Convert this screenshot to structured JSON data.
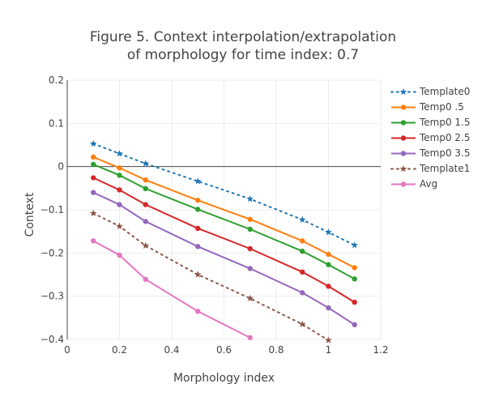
{
  "chart_data": {
    "type": "line",
    "title_line1": "Figure 5. Context interpolation/extrapolation",
    "title_line2": "of morphology for time index: 0.7",
    "xlabel": "Morphology index",
    "ylabel": "Context",
    "xlim": [
      0,
      1.2
    ],
    "ylim": [
      -0.4,
      0.2
    ],
    "xticks": [
      0,
      0.2,
      0.4,
      0.6,
      0.8,
      1,
      1.2
    ],
    "xtick_labels": [
      "0",
      "0.2",
      "0.4",
      "0.6",
      "0.8",
      "1",
      "1.2"
    ],
    "yticks": [
      0.2,
      0.1,
      0,
      -0.1,
      -0.2,
      -0.3,
      -0.4
    ],
    "ytick_labels": [
      "0.2",
      "0.1",
      "0",
      "−0.1",
      "−0.2",
      "−0.3",
      "−0.4"
    ],
    "grid": true,
    "legend_position": "top-right",
    "series": [
      {
        "name": "Template0",
        "color": "#1f77b4",
        "dash": "dot",
        "marker": "star",
        "x": [
          0.1,
          0.2,
          0.3,
          0.5,
          0.7,
          0.9,
          1.0,
          1.1
        ],
        "y": [
          0.053,
          0.03,
          0.007,
          -0.034,
          -0.075,
          -0.123,
          -0.152,
          -0.182
        ]
      },
      {
        "name": "Temp0 .5",
        "color": "#ff7f0e",
        "dash": "solid",
        "marker": "circle",
        "x": [
          0.1,
          0.2,
          0.3,
          0.5,
          0.7,
          0.9,
          1.0,
          1.1
        ],
        "y": [
          0.022,
          -0.003,
          -0.031,
          -0.078,
          -0.122,
          -0.172,
          -0.203,
          -0.234
        ]
      },
      {
        "name": "Temp0 1.5",
        "color": "#2ca02c",
        "dash": "solid",
        "marker": "circle",
        "x": [
          0.1,
          0.2,
          0.3,
          0.5,
          0.7,
          0.9,
          1.0,
          1.1
        ],
        "y": [
          0.005,
          -0.02,
          -0.051,
          -0.099,
          -0.145,
          -0.196,
          -0.227,
          -0.26
        ]
      },
      {
        "name": "Temp0 2.5",
        "color": "#d62728",
        "dash": "solid",
        "marker": "circle",
        "x": [
          0.1,
          0.2,
          0.3,
          0.5,
          0.7,
          0.9,
          1.0,
          1.1
        ],
        "y": [
          -0.026,
          -0.054,
          -0.088,
          -0.143,
          -0.19,
          -0.244,
          -0.277,
          -0.314
        ]
      },
      {
        "name": "Temp0 3.5",
        "color": "#9467bd",
        "dash": "solid",
        "marker": "circle",
        "x": [
          0.1,
          0.2,
          0.3,
          0.5,
          0.7,
          0.9,
          1.0,
          1.1
        ],
        "y": [
          -0.06,
          -0.088,
          -0.127,
          -0.185,
          -0.236,
          -0.292,
          -0.327,
          -0.366
        ]
      },
      {
        "name": "Template1",
        "color": "#8c564b",
        "dash": "dot",
        "marker": "star",
        "x": [
          0.1,
          0.2,
          0.3,
          0.5,
          0.7,
          0.9,
          1.0
        ],
        "y": [
          -0.108,
          -0.138,
          -0.183,
          -0.25,
          -0.305,
          -0.365,
          -0.402
        ]
      },
      {
        "name": "Avg",
        "color": "#e377c2",
        "dash": "solid",
        "marker": "circle",
        "x": [
          0.1,
          0.2,
          0.3,
          0.5,
          0.7
        ],
        "y": [
          -0.172,
          -0.205,
          -0.261,
          -0.335,
          -0.396
        ]
      }
    ]
  }
}
